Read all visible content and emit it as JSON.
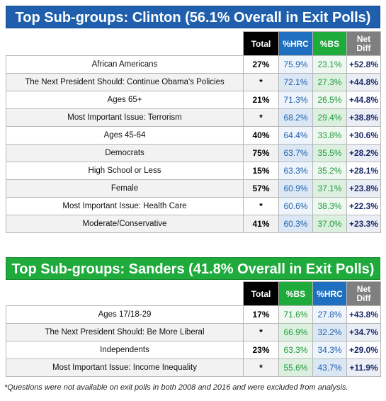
{
  "chart_data": [
    {
      "type": "table",
      "title": "Top Sub-groups: Clinton  (56.1% Overall in Exit Polls)",
      "columns": [
        "Total",
        "%HRC",
        "%BS",
        "Net Diff"
      ],
      "rows": [
        {
          "label": "African Americans",
          "total": "27%",
          "hrc": "75.9%",
          "bs": "23.1%",
          "net": "+52.8%"
        },
        {
          "label": "The Next President Should: Continue Obama's Policies",
          "total": "*",
          "hrc": "72.1%",
          "bs": "27.3%",
          "net": "+44.8%"
        },
        {
          "label": "Ages 65+",
          "total": "21%",
          "hrc": "71.3%",
          "bs": "26.5%",
          "net": "+44.8%"
        },
        {
          "label": "Most Important Issue: Terrorism",
          "total": "*",
          "hrc": "68.2%",
          "bs": "29.4%",
          "net": "+38.8%"
        },
        {
          "label": "Ages 45-64",
          "total": "40%",
          "hrc": "64.4%",
          "bs": "33.8%",
          "net": "+30.6%"
        },
        {
          "label": "Democrats",
          "total": "75%",
          "hrc": "63.7%",
          "bs": "35.5%",
          "net": "+28.2%"
        },
        {
          "label": "High School or Less",
          "total": "15%",
          "hrc": "63.3%",
          "bs": "35.2%",
          "net": "+28.1%"
        },
        {
          "label": "Female",
          "total": "57%",
          "hrc": "60.9%",
          "bs": "37.1%",
          "net": "+23.8%"
        },
        {
          "label": "Most Important Issue: Health Care",
          "total": "*",
          "hrc": "60.6%",
          "bs": "38.3%",
          "net": "+22.3%"
        },
        {
          "label": "Moderate/Conservative",
          "total": "41%",
          "hrc": "60.3%",
          "bs": "37.0%",
          "net": "+23.3%"
        }
      ]
    },
    {
      "type": "table",
      "title": "Top Sub-groups: Sanders (41.8% Overall in Exit Polls)",
      "columns": [
        "Total",
        "%BS",
        "%HRC",
        "Net Diff"
      ],
      "rows": [
        {
          "label": "Ages 17/18-29",
          "total": "17%",
          "bs": "71.6%",
          "hrc": "27.8%",
          "net": "+43.8%"
        },
        {
          "label": "The Next President Should: Be More Liberal",
          "total": "*",
          "bs": "66.9%",
          "hrc": "32.2%",
          "net": "+34.7%"
        },
        {
          "label": "Independents",
          "total": "23%",
          "bs": "63.3%",
          "hrc": "34.3%",
          "net": "+29.0%"
        },
        {
          "label": "Most Important Issue: Income Inequality",
          "total": "*",
          "bs": "55.6%",
          "hrc": "43.7%",
          "net": "+11.9%"
        }
      ]
    }
  ],
  "headers": {
    "total": "Total",
    "hrc": "%HRC",
    "bs": "%BS",
    "net_line1": "Net",
    "net_line2": "Diff"
  },
  "footnote": "*Questions were  not available on exit polls in both 2008 and 2016 and were excluded from analysis.",
  "colors": {
    "clinton_banner": "#1f5fad",
    "sanders_banner": "#1faa3c",
    "hrc_column": "#1f6fc0",
    "bs_column": "#1faa3c",
    "net_column": "#7f7f7f",
    "total_column": "#000000"
  }
}
